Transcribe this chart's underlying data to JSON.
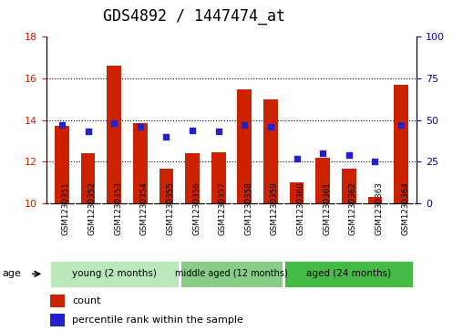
{
  "title": "GDS4892 / 1447474_at",
  "samples": [
    "GSM1230351",
    "GSM1230352",
    "GSM1230353",
    "GSM1230354",
    "GSM1230355",
    "GSM1230356",
    "GSM1230357",
    "GSM1230358",
    "GSM1230359",
    "GSM1230360",
    "GSM1230361",
    "GSM1230362",
    "GSM1230363",
    "GSM1230364"
  ],
  "count_values": [
    13.7,
    12.4,
    16.6,
    13.85,
    11.65,
    12.4,
    12.45,
    15.45,
    15.0,
    11.0,
    12.2,
    11.65,
    10.3,
    15.7
  ],
  "percentile_values": [
    47,
    43,
    48,
    46,
    40,
    44,
    43,
    47,
    46,
    27,
    30,
    29,
    25,
    47
  ],
  "ylim_left": [
    10,
    18
  ],
  "ylim_right": [
    0,
    100
  ],
  "yticks_left": [
    10,
    12,
    14,
    16,
    18
  ],
  "yticks_right": [
    0,
    25,
    50,
    75,
    100
  ],
  "bar_color": "#cc2200",
  "dot_color": "#2222cc",
  "bar_width": 0.55,
  "groups": [
    {
      "label": "young (2 months)",
      "start": 0,
      "end": 4,
      "color": "#bbe8bb"
    },
    {
      "label": "middle aged (12 months)",
      "start": 5,
      "end": 8,
      "color": "#88cc88"
    },
    {
      "label": "aged (24 months)",
      "start": 9,
      "end": 13,
      "color": "#44bb44"
    }
  ],
  "group_label": "age",
  "legend_count_label": "count",
  "legend_percentile_label": "percentile rank within the sample",
  "grid_color": "#000000",
  "title_fontsize": 12,
  "tick_fontsize": 8,
  "axis_label_color_left": "#cc2200",
  "axis_label_color_right": "#0000cc",
  "background_color": "#ffffff",
  "plot_area_bg": "#ffffff",
  "xlabel_area_bg": "#c8c8c8"
}
